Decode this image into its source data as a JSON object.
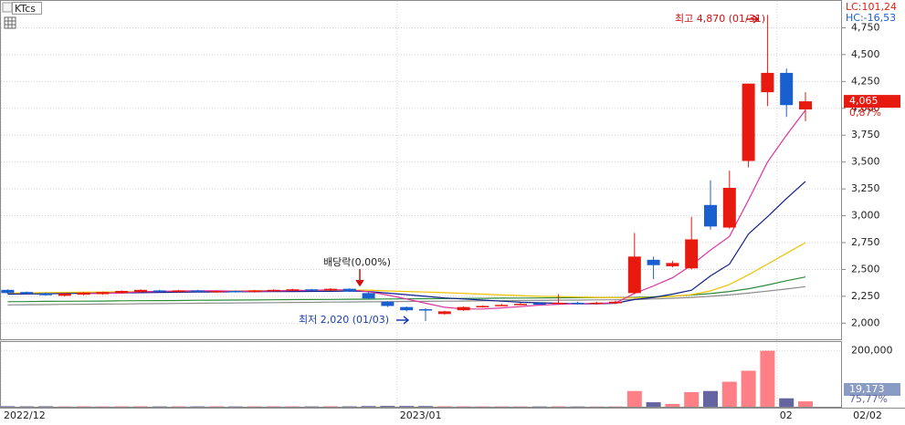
{
  "chart_data": {
    "type": "candlestick",
    "title": "KTcs",
    "categories": [
      "2022/12",
      null,
      null,
      null,
      null,
      null,
      null,
      null,
      null,
      null,
      null,
      null,
      null,
      null,
      null,
      null,
      null,
      null,
      null,
      null,
      null,
      "2023/01",
      null,
      null,
      null,
      null,
      null,
      null,
      null,
      null,
      null,
      null,
      null,
      null,
      null,
      null,
      null,
      null,
      null,
      null,
      null,
      "02",
      null
    ],
    "open": [
      2310,
      2290,
      2280,
      2255,
      2265,
      2270,
      2280,
      2290,
      2305,
      2290,
      2305,
      2290,
      2300,
      2290,
      2300,
      2305,
      2315,
      2305,
      2320,
      2280,
      2200,
      2150,
      2130,
      2085,
      2120,
      2150,
      2165,
      2175,
      2185,
      2180,
      2190,
      2185,
      2185,
      2280,
      2590,
      2530,
      2510,
      3100,
      2890,
      3510,
      4150,
      4330,
      3990
    ],
    "high": [
      2315,
      2295,
      2285,
      2280,
      2290,
      2295,
      2305,
      2315,
      2310,
      2310,
      2310,
      2305,
      2305,
      2310,
      2315,
      2320,
      2320,
      2325,
      2325,
      2290,
      2205,
      2155,
      2140,
      2115,
      2155,
      2165,
      2180,
      2190,
      2195,
      2270,
      2200,
      2200,
      2210,
      2840,
      2620,
      2580,
      2990,
      3330,
      3420,
      4230,
      4870,
      4370,
      4150
    ],
    "low": [
      2275,
      2270,
      2255,
      2250,
      2260,
      2265,
      2275,
      2285,
      2290,
      2285,
      2290,
      2285,
      2285,
      2285,
      2295,
      2300,
      2300,
      2300,
      2290,
      2225,
      2150,
      2110,
      2020,
      2080,
      2115,
      2145,
      2160,
      2170,
      2175,
      2175,
      2180,
      2180,
      2180,
      2270,
      2410,
      2520,
      2500,
      2870,
      2880,
      3450,
      4020,
      3920,
      3880
    ],
    "close": [
      2280,
      2275,
      2260,
      2275,
      2285,
      2290,
      2300,
      2310,
      2295,
      2305,
      2295,
      2300,
      2290,
      2305,
      2310,
      2315,
      2305,
      2320,
      2295,
      2230,
      2160,
      2120,
      2120,
      2110,
      2150,
      2160,
      2170,
      2180,
      2180,
      2190,
      2185,
      2190,
      2200,
      2620,
      2540,
      2560,
      2780,
      2900,
      3260,
      4230,
      4330,
      4030,
      4065
    ],
    "up_color": "#e8190e",
    "down_color": "#1a5fd0",
    "ylim": [
      1850,
      5000
    ],
    "yticks": [
      {
        "value": 2000,
        "label": "2,000"
      },
      {
        "value": 2250,
        "label": "2,250"
      },
      {
        "value": 2500,
        "label": "2,500"
      },
      {
        "value": 2750,
        "label": "2,750"
      },
      {
        "value": 3000,
        "label": "3,000"
      },
      {
        "value": 3250,
        "label": "3,250"
      },
      {
        "value": 3500,
        "label": "3,500"
      },
      {
        "value": 3750,
        "label": "3,750"
      },
      {
        "value": 4000,
        "label": "4,000"
      },
      {
        "value": 4250,
        "label": "4,250"
      },
      {
        "value": 4500,
        "label": "4,500"
      },
      {
        "value": 4750,
        "label": "4,750"
      }
    ],
    "grid": true,
    "series": [
      {
        "color": "#8c8c8c",
        "values": [
          2170,
          2172,
          2173,
          2175,
          2176,
          2178,
          2179,
          2181,
          2182,
          2184,
          2185,
          2187,
          2188,
          2190,
          2191,
          2193,
          2194,
          2196,
          2197,
          2199,
          2200,
          2202,
          2203,
          2205,
          2206,
          2208,
          2209,
          2211,
          2212,
          2214,
          2215,
          2217,
          2218,
          2220,
          2225,
          2232,
          2240,
          2250,
          2263,
          2280,
          2298,
          2318,
          2340
        ]
      },
      {
        "color": "#2e8b3a",
        "values": [
          2200,
          2201,
          2203,
          2204,
          2205,
          2206,
          2208,
          2209,
          2210,
          2211,
          2213,
          2214,
          2215,
          2216,
          2218,
          2219,
          2220,
          2221,
          2223,
          2224,
          2225,
          2226,
          2228,
          2229,
          2230,
          2231,
          2233,
          2234,
          2235,
          2236,
          2237,
          2238,
          2239,
          2240,
          2245,
          2252,
          2262,
          2275,
          2295,
          2320,
          2355,
          2395,
          2430
        ]
      },
      {
        "color": "#f2c200",
        "values": [
          2280,
          2282,
          2284,
          2286,
          2288,
          2290,
          2292,
          2293,
          2295,
          2296,
          2298,
          2299,
          2300,
          2302,
          2303,
          2305,
          2306,
          2307,
          2308,
          2308,
          2300,
          2295,
          2290,
          2284,
          2277,
          2270,
          2263,
          2257,
          2250,
          2247,
          2243,
          2240,
          2237,
          2235,
          2240,
          2250,
          2265,
          2300,
          2360,
          2450,
          2550,
          2650,
          2750
        ]
      },
      {
        "color": "#101f8c",
        "values": [
          2270,
          2272,
          2274,
          2276,
          2278,
          2280,
          2282,
          2284,
          2286,
          2288,
          2290,
          2291,
          2292,
          2293,
          2294,
          2295,
          2296,
          2297,
          2298,
          2295,
          2280,
          2265,
          2250,
          2235,
          2225,
          2215,
          2205,
          2195,
          2190,
          2185,
          2180,
          2180,
          2185,
          2220,
          2240,
          2270,
          2307,
          2440,
          2550,
          2830,
          2990,
          3160,
          3320
        ]
      },
      {
        "color": "#e0309f",
        "values": [
          null,
          null,
          null,
          null,
          2275,
          2277,
          2282,
          2292,
          2296,
          2300,
          2301,
          2301,
          2297,
          2299,
          2300,
          2304,
          2305,
          2311,
          2309,
          2293,
          2262,
          2225,
          2185,
          2148,
          2132,
          2132,
          2142,
          2154,
          2168,
          2176,
          2181,
          2185,
          2189,
          2277,
          2347,
          2422,
          2540,
          2680,
          2808,
          3146,
          3500,
          3750,
          3983
        ]
      }
    ],
    "volume": {
      "values": [
        2000,
        1500,
        1800,
        1200,
        1600,
        1400,
        1500,
        1700,
        1300,
        1500,
        1400,
        1600,
        1200,
        1500,
        1700,
        1600,
        1300,
        1800,
        1500,
        2500,
        3000,
        2800,
        2600,
        1800,
        1500,
        1400,
        1300,
        1200,
        1200,
        1500,
        1100,
        1000,
        1200,
        56000,
        16000,
        10000,
        52000,
        56000,
        89000,
        128000,
        199000,
        30000,
        19173
      ],
      "up_color": "#ff7f86",
      "down_color": "#6464a0",
      "ylim": [
        0,
        230000
      ],
      "yticks": [
        {
          "value": 200000,
          "label": "200,000"
        }
      ]
    },
    "lc_label": "LC:101,24",
    "hc_label": "HC:-16,53",
    "last_price": {
      "value": 4065,
      "label": "4,065"
    },
    "change_label": "0,87%",
    "last_volume": {
      "value": 19173,
      "label": "19,173"
    },
    "volume_ratio_label": "75,77%",
    "high_annotation": "최고 4,870 (01/31)",
    "low_annotation": "최저 2,020 (01/03)",
    "ex_dividend_annotation": "배당락(0,00%)",
    "current_date": "02/02"
  }
}
